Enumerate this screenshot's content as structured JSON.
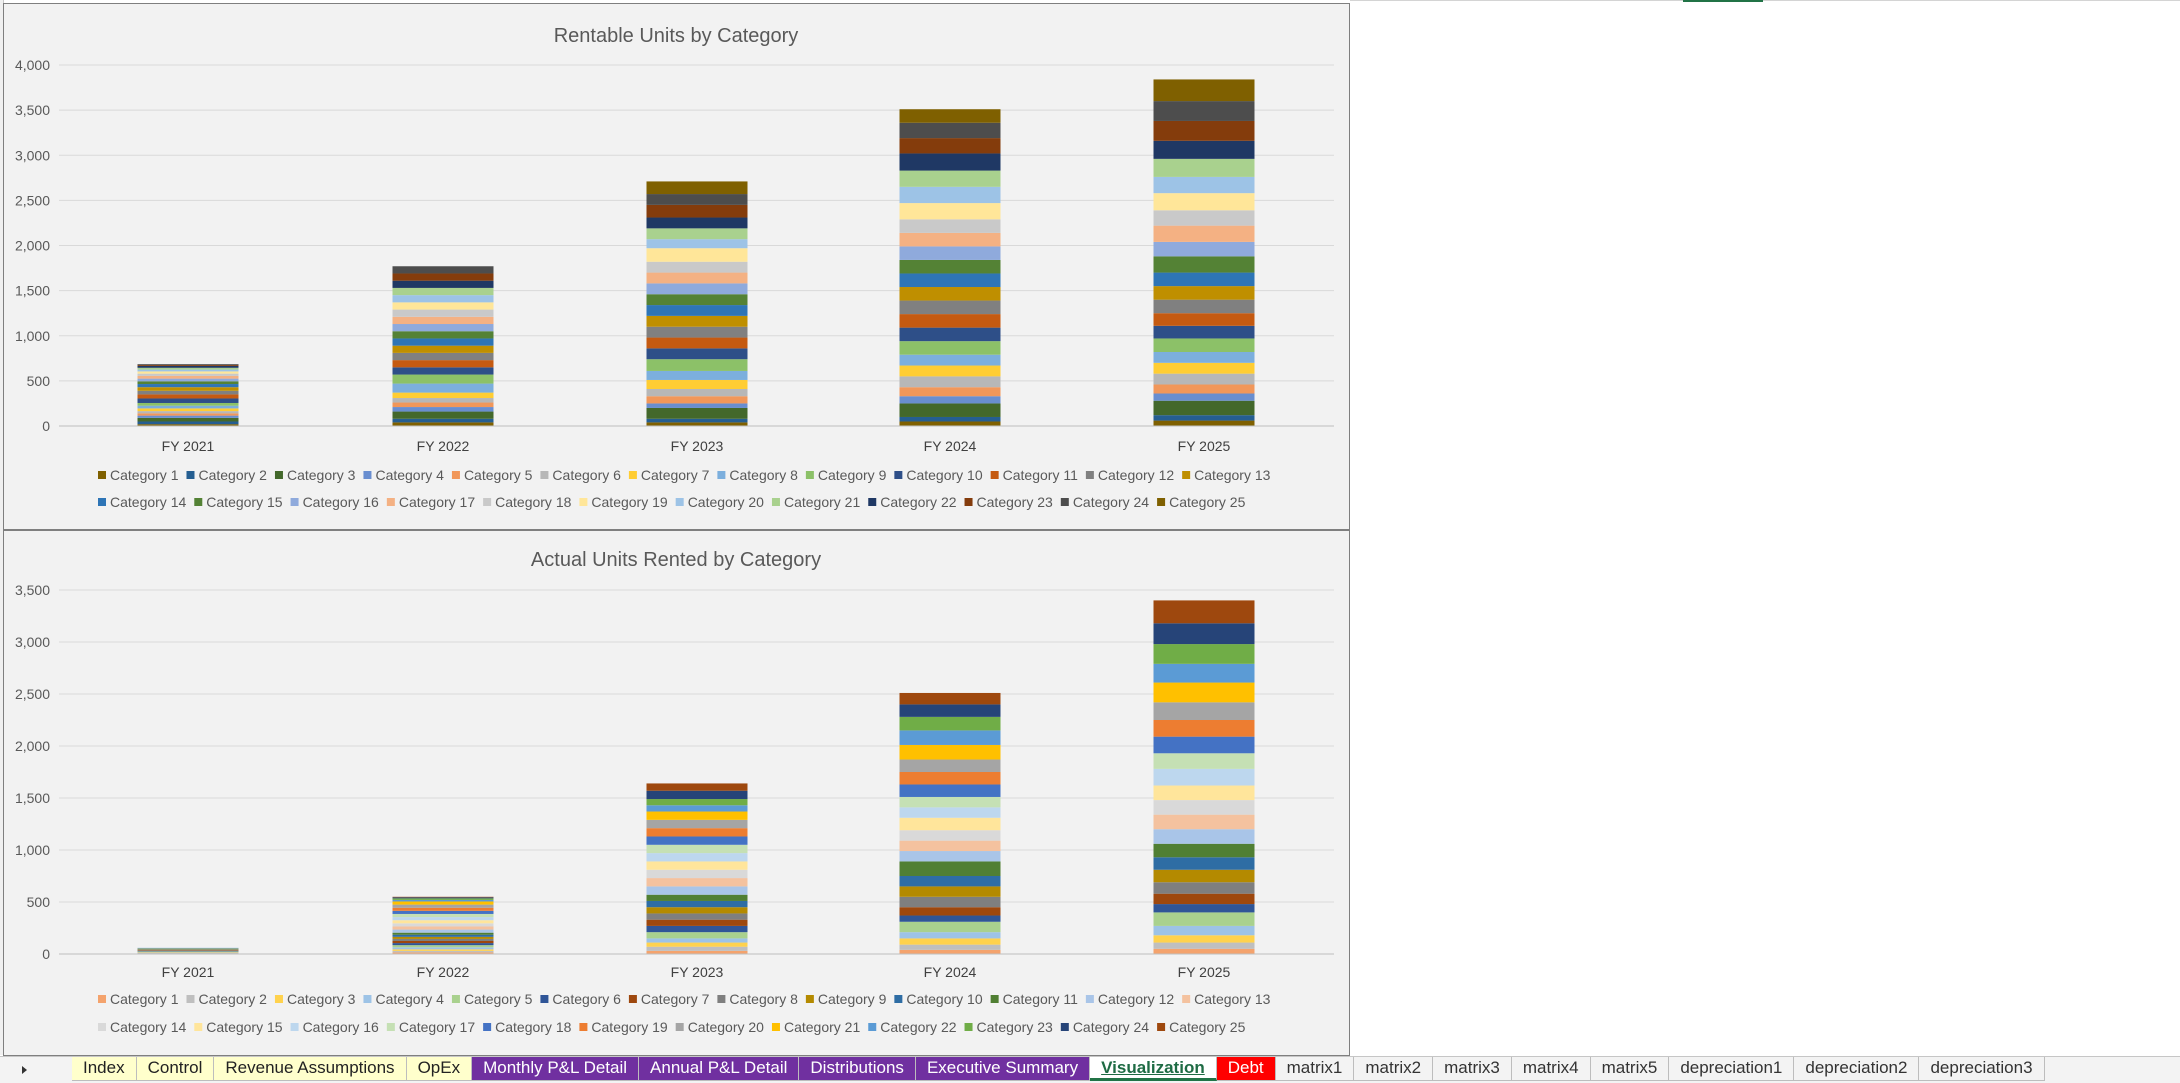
{
  "colors": {
    "chart1": [
      "#7f6000",
      "#255e91",
      "#43682b",
      "#698ed0",
      "#f1975a",
      "#b7b7b7",
      "#ffcd33",
      "#7cafdd",
      "#8cc168",
      "#2e4f88",
      "#c55a11",
      "#808080",
      "#bf8f00",
      "#2e75b6",
      "#548235",
      "#8faadc",
      "#f4b183",
      "#c9c9c9",
      "#ffe699",
      "#9dc3e6",
      "#a9d18e",
      "#1f3864",
      "#843c0c",
      "#4d4d4d",
      "#7f6000"
    ],
    "chart2": [
      "#f4a36d",
      "#bfbfbf",
      "#ffd24d",
      "#9dc3e6",
      "#a9d18e",
      "#2f5597",
      "#9e480e",
      "#7f7f7f",
      "#b48a00",
      "#2e6da4",
      "#507f33",
      "#a9c5e8",
      "#f4c29f",
      "#d9d9d9",
      "#ffe59b",
      "#bdd7ee",
      "#c5e0b4",
      "#4472c4",
      "#ed7d31",
      "#a5a5a5",
      "#ffc000",
      "#5b9bd5",
      "#70ad47",
      "#264478",
      "#9e480e"
    ]
  },
  "charts": [
    {
      "chart_data": {
        "type": "bar",
        "stacked": true,
        "title": "Rentable Units by Category",
        "categories": [
          "FY 2021",
          "FY 2022",
          "FY 2023",
          "FY 2024",
          "FY 2025"
        ],
        "ylim": [
          0,
          4000
        ],
        "yticks": [
          0,
          500,
          1000,
          1500,
          2000,
          2500,
          3000,
          3500,
          4000
        ],
        "ytick_labels": [
          "0",
          "500",
          "1,000",
          "1,500",
          "2,000",
          "2,500",
          "3,000",
          "3,500",
          "4,000"
        ],
        "grid": true,
        "legend_position": "bottom",
        "series": [
          {
            "name": "Category 1",
            "values": [
              20,
              40,
              40,
              50,
              60
            ]
          },
          {
            "name": "Category 2",
            "values": [
              30,
              40,
              40,
              50,
              60
            ]
          },
          {
            "name": "Category 3",
            "values": [
              40,
              80,
              120,
              150,
              160
            ]
          },
          {
            "name": "Category 4",
            "values": [
              25,
              50,
              50,
              80,
              80
            ]
          },
          {
            "name": "Category 5",
            "values": [
              25,
              50,
              80,
              100,
              100
            ]
          },
          {
            "name": "Category 6",
            "values": [
              25,
              50,
              80,
              120,
              120
            ]
          },
          {
            "name": "Category 7",
            "values": [
              30,
              60,
              100,
              120,
              120
            ]
          },
          {
            "name": "Category 8",
            "values": [
              30,
              100,
              100,
              120,
              120
            ]
          },
          {
            "name": "Category 9",
            "values": [
              30,
              100,
              130,
              150,
              150
            ]
          },
          {
            "name": "Category 10",
            "values": [
              50,
              80,
              120,
              150,
              140
            ]
          },
          {
            "name": "Category 11",
            "values": [
              45,
              80,
              120,
              150,
              140
            ]
          },
          {
            "name": "Category 12",
            "values": [
              40,
              80,
              120,
              150,
              150
            ]
          },
          {
            "name": "Category 13",
            "values": [
              40,
              80,
              120,
              150,
              150
            ]
          },
          {
            "name": "Category 14",
            "values": [
              35,
              80,
              120,
              150,
              150
            ]
          },
          {
            "name": "Category 15",
            "values": [
              30,
              80,
              120,
              150,
              180
            ]
          },
          {
            "name": "Category 16",
            "values": [
              30,
              80,
              120,
              150,
              160
            ]
          },
          {
            "name": "Category 17",
            "values": [
              30,
              80,
              120,
              150,
              180
            ]
          },
          {
            "name": "Category 18",
            "values": [
              25,
              80,
              120,
              150,
              170
            ]
          },
          {
            "name": "Category 19",
            "values": [
              25,
              80,
              150,
              180,
              190
            ]
          },
          {
            "name": "Category 20",
            "values": [
              20,
              80,
              100,
              180,
              180
            ]
          },
          {
            "name": "Category 21",
            "values": [
              20,
              80,
              120,
              180,
              200
            ]
          },
          {
            "name": "Category 22",
            "values": [
              20,
              80,
              120,
              190,
              200
            ]
          },
          {
            "name": "Category 23",
            "values": [
              10,
              80,
              140,
              170,
              220
            ]
          },
          {
            "name": "Category 24",
            "values": [
              10,
              80,
              120,
              170,
              220
            ]
          },
          {
            "name": "Category 25",
            "values": [
              0,
              0,
              140,
              150,
              240
            ]
          }
        ]
      }
    },
    {
      "chart_data": {
        "type": "bar",
        "stacked": true,
        "title": "Actual Units Rented by Category",
        "categories": [
          "FY 2021",
          "FY 2022",
          "FY 2023",
          "FY 2024",
          "FY 2025"
        ],
        "ylim": [
          0,
          3500
        ],
        "yticks": [
          0,
          500,
          1000,
          1500,
          2000,
          2500,
          3000,
          3500
        ],
        "ytick_labels": [
          "0",
          "500",
          "1,000",
          "1,500",
          "2,000",
          "2,500",
          "3,000",
          "3,500"
        ],
        "grid": true,
        "legend_position": "bottom",
        "series": [
          {
            "name": "Category 1",
            "values": [
              5,
              15,
              30,
              40,
              50
            ]
          },
          {
            "name": "Category 2",
            "values": [
              5,
              15,
              40,
              50,
              60
            ]
          },
          {
            "name": "Category 3",
            "values": [
              5,
              15,
              40,
              60,
              70
            ]
          },
          {
            "name": "Category 4",
            "values": [
              5,
              20,
              40,
              60,
              90
            ]
          },
          {
            "name": "Category 5",
            "values": [
              5,
              20,
              60,
              100,
              130
            ]
          },
          {
            "name": "Category 6",
            "values": [
              5,
              20,
              60,
              60,
              80
            ]
          },
          {
            "name": "Category 7",
            "values": [
              5,
              20,
              60,
              80,
              100
            ]
          },
          {
            "name": "Category 8",
            "values": [
              5,
              20,
              60,
              100,
              110
            ]
          },
          {
            "name": "Category 9",
            "values": [
              5,
              20,
              60,
              100,
              120
            ]
          },
          {
            "name": "Category 10",
            "values": [
              5,
              20,
              60,
              100,
              120
            ]
          },
          {
            "name": "Category 11",
            "values": [
              5,
              20,
              60,
              140,
              130
            ]
          },
          {
            "name": "Category 12",
            "values": [
              5,
              30,
              80,
              100,
              140
            ]
          },
          {
            "name": "Category 13",
            "values": [
              0,
              30,
              80,
              100,
              140
            ]
          },
          {
            "name": "Category 14",
            "values": [
              0,
              30,
              80,
              100,
              140
            ]
          },
          {
            "name": "Category 15",
            "values": [
              0,
              30,
              80,
              120,
              140
            ]
          },
          {
            "name": "Category 16",
            "values": [
              0,
              30,
              80,
              100,
              160
            ]
          },
          {
            "name": "Category 17",
            "values": [
              0,
              30,
              80,
              100,
              150
            ]
          },
          {
            "name": "Category 18",
            "values": [
              0,
              30,
              80,
              120,
              160
            ]
          },
          {
            "name": "Category 19",
            "values": [
              0,
              30,
              80,
              120,
              160
            ]
          },
          {
            "name": "Category 20",
            "values": [
              0,
              30,
              80,
              120,
              170
            ]
          },
          {
            "name": "Category 21",
            "values": [
              0,
              30,
              80,
              140,
              190
            ]
          },
          {
            "name": "Category 22",
            "values": [
              0,
              15,
              60,
              140,
              180
            ]
          },
          {
            "name": "Category 23",
            "values": [
              0,
              15,
              60,
              130,
              190
            ]
          },
          {
            "name": "Category 24",
            "values": [
              0,
              10,
              80,
              120,
              200
            ]
          },
          {
            "name": "Category 25",
            "values": [
              0,
              5,
              70,
              110,
              220
            ]
          }
        ]
      }
    }
  ],
  "tabs": [
    {
      "label": "Index",
      "bg": "#ffffcc",
      "fg": "#222222"
    },
    {
      "label": "Control",
      "bg": "#ffffcc",
      "fg": "#222222"
    },
    {
      "label": "Revenue Assumptions",
      "bg": "#ffffcc",
      "fg": "#222222"
    },
    {
      "label": "OpEx",
      "bg": "#ffffcc",
      "fg": "#222222"
    },
    {
      "label": "Monthly P&L Detail",
      "bg": "#7030a0",
      "fg": "#ffffff"
    },
    {
      "label": "Annual P&L Detail",
      "bg": "#7030a0",
      "fg": "#ffffff"
    },
    {
      "label": "Distributions",
      "bg": "#7030a0",
      "fg": "#ffffff"
    },
    {
      "label": "Executive Summary",
      "bg": "#7030a0",
      "fg": "#ffffff"
    },
    {
      "label": "Visualization",
      "bg": "#ffffff",
      "fg": "#1e6b44",
      "active": true
    },
    {
      "label": "Debt",
      "bg": "#ff0000",
      "fg": "#ffffff"
    },
    {
      "label": "matrix1",
      "bg": "#f3f3f3",
      "fg": "#333333"
    },
    {
      "label": "matrix2",
      "bg": "#f3f3f3",
      "fg": "#333333"
    },
    {
      "label": "matrix3",
      "bg": "#f3f3f3",
      "fg": "#333333"
    },
    {
      "label": "matrix4",
      "bg": "#f3f3f3",
      "fg": "#333333"
    },
    {
      "label": "matrix5",
      "bg": "#f3f3f3",
      "fg": "#333333"
    },
    {
      "label": "depreciation1",
      "bg": "#f3f3f3",
      "fg": "#333333"
    },
    {
      "label": "depreciation2",
      "bg": "#f3f3f3",
      "fg": "#333333"
    },
    {
      "label": "depreciation3",
      "bg": "#f3f3f3",
      "fg": "#333333"
    }
  ]
}
